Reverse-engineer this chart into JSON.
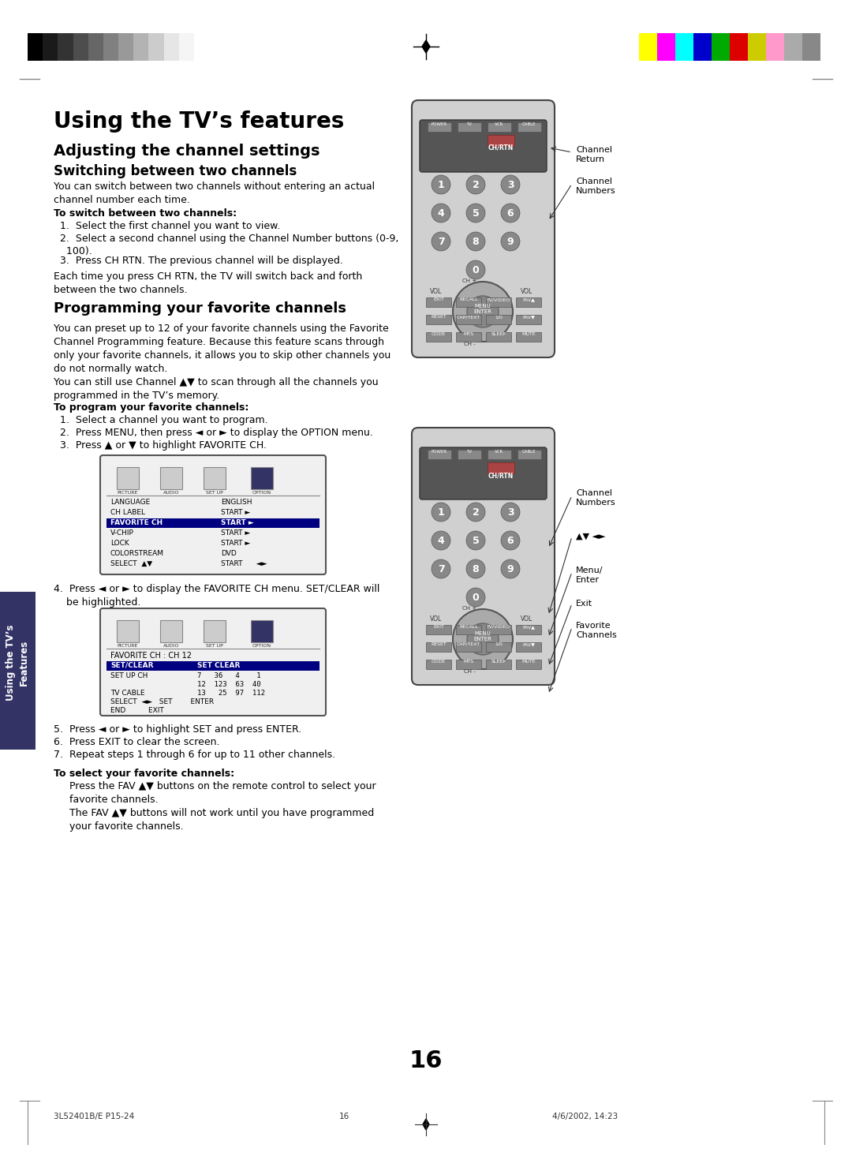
{
  "page_bg": "#ffffff",
  "page_number": "16",
  "footer_left": "3L52401B/E P15-24",
  "footer_center": "16",
  "footer_right": "4/6/2002, 14:23",
  "title": "Using the TV’s features",
  "section1_title": "Adjusting the channel settings",
  "subsection1_title": "Switching between two channels",
  "subsection1_body": "You can switch between two channels without entering an actual\nchannel number each time.",
  "subsection1_bold": "To switch between two channels:",
  "subsection1_steps": [
    "Select the first channel you want to view.",
    "Select a second channel using the Channel Number buttons (0-9,\n    100).",
    "Press CH RTN. The previous channel will be displayed."
  ],
  "subsection1_footer": "Each time you press CH RTN, the TV will switch back and forth\nbetween the two channels.",
  "section2_title": "Programming your favorite channels",
  "section2_body1": "You can preset up to 12 of your favorite channels using the Favorite\nChannel Programming feature. Because this feature scans through\nonly your favorite channels, it allows you to skip other channels you\ndo not normally watch.",
  "section2_body2": "You can still use Channel ▲▼ to scan through all the channels you\nprogrammed in the TV’s memory.",
  "section2_bold": "To program your favorite channels:",
  "section2_steps": [
    "Select a channel you want to program.",
    "Press MENU, then press ◄ or ► to display the OPTION menu.",
    "Press ▲ or ▼ to highlight FAVORITE CH."
  ],
  "step4_text": "4.  Press ◄ or ► to display the FAVORITE CH menu. SET/CLEAR will\n    be highlighted.",
  "steps567_text": [
    "5.  Press ◄ or ► to highlight SET and press ENTER.",
    "6.  Press EXIT to clear the screen.",
    "7.  Repeat steps 1 through 6 for up to 11 other channels."
  ],
  "select_bold": "To select your favorite channels:",
  "select_body": "Press the FAV ▲▼ buttons on the remote control to select your\nfavorite channels.\nThe FAV ▲▼ buttons will not work until you have programmed\nyour favorite channels.",
  "sidebar_text": "Using the TV’s\nFeatures",
  "gray_colors_left": [
    "#000000",
    "#1a1a1a",
    "#333333",
    "#4d4d4d",
    "#666666",
    "#808080",
    "#999999",
    "#b3b3b3",
    "#cccccc",
    "#e6e6e6",
    "#f5f5f5",
    "#ffffff"
  ],
  "color_bars_right": [
    "#ffff00",
    "#ff00ff",
    "#00ffff",
    "#0000cc",
    "#00aa00",
    "#dd0000",
    "#cccc00",
    "#ff99cc",
    "#aaaaaa",
    "#888888"
  ],
  "label_channel_return": "Channel\nReturn",
  "label_channel_numbers": "Channel\nNumbers",
  "label_channel_numbers2": "Channel\nNumbers",
  "label_updown_arrows": "▲▼ ◄►",
  "label_menu_enter": "Menu/\nEnter",
  "label_exit": "Exit",
  "label_favorite_channels": "Favorite\nChannels"
}
